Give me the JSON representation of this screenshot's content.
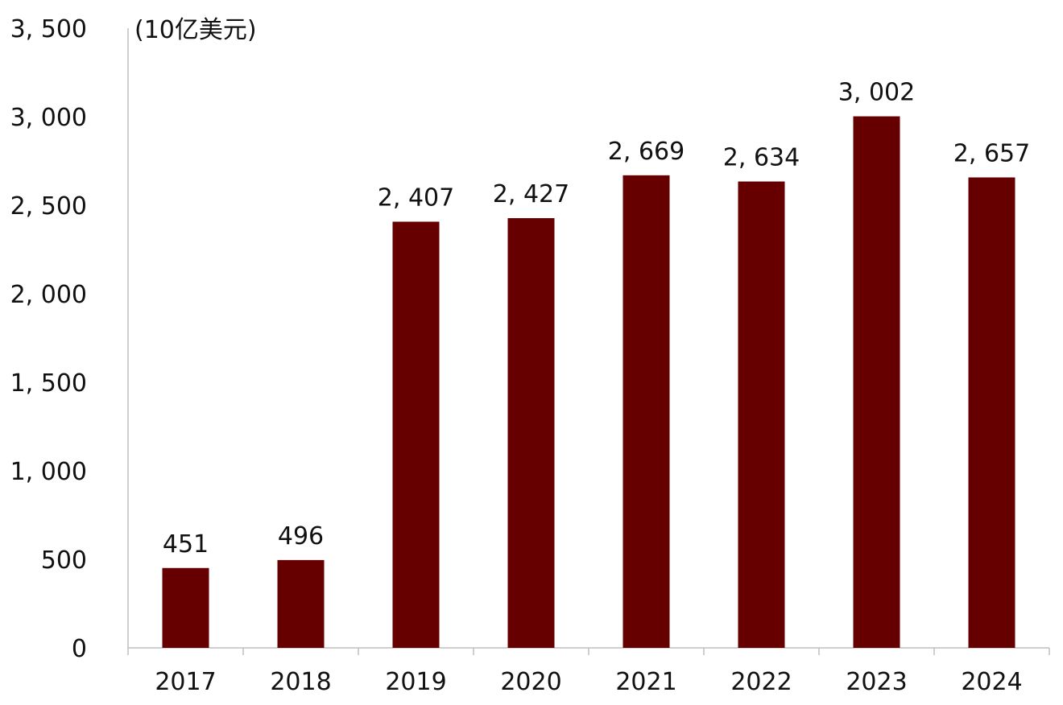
{
  "chart_data": {
    "type": "bar",
    "unit_label": "(10亿美元)",
    "categories": [
      "2017",
      "2018",
      "2019",
      "2020",
      "2021",
      "2022",
      "2023",
      "2024"
    ],
    "values": [
      451,
      496,
      2407,
      2427,
      2669,
      2634,
      3002,
      2657
    ],
    "data_labels": [
      "451",
      "496",
      "2, 407",
      "2, 427",
      "2, 669",
      "2, 634",
      "3, 002",
      "2, 657"
    ],
    "ylim": [
      0,
      3500
    ],
    "yticks": [
      0,
      500,
      1000,
      1500,
      2000,
      2500,
      3000,
      3500
    ],
    "ytick_labels": [
      "0",
      "500",
      "1, 000",
      "1, 500",
      "2, 000",
      "2, 500",
      "3, 000",
      "3, 500"
    ],
    "grid": false,
    "legend": "none",
    "bar_color": "#660000",
    "axis_color": "#bfbfbf"
  }
}
